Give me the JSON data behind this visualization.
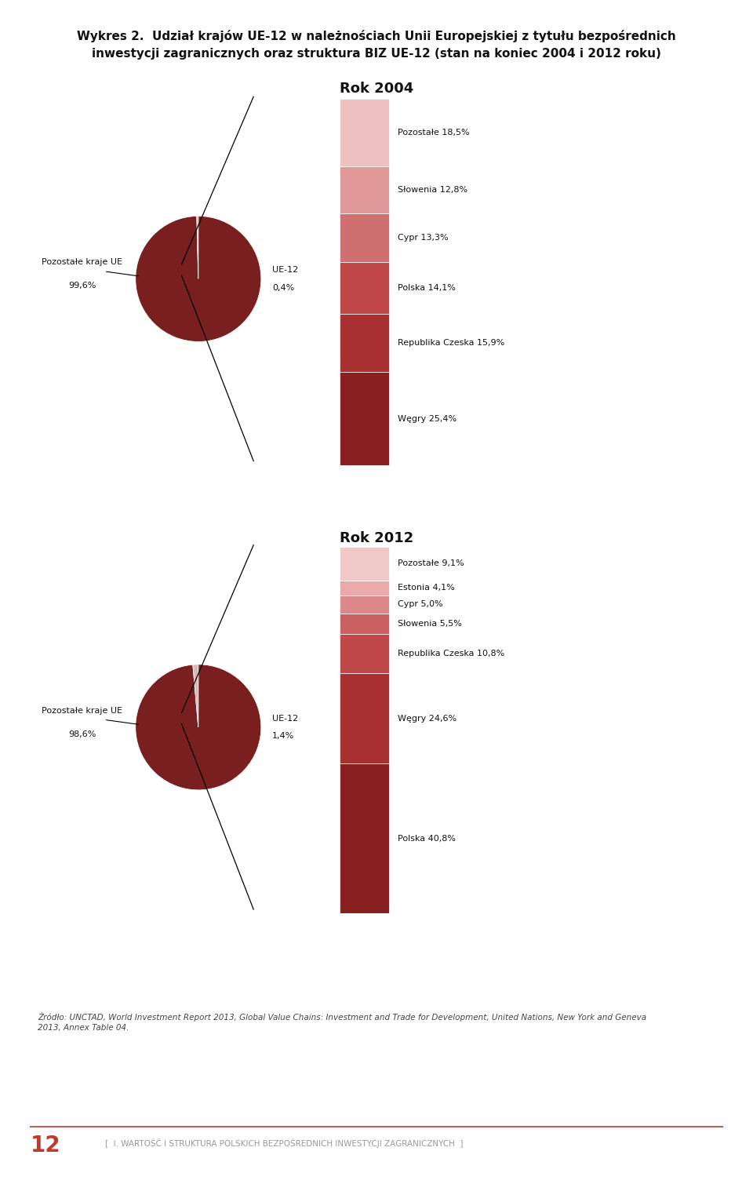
{
  "title_line1": "Wykres 2.  Udział krajów UE-12 w należnościach Unii Europejskiej z tytułu bezpośrednich",
  "title_line2": "inwestycji zagranicznych oraz struktura BIZ UE-12 (stan na koniec 2004 i 2012 roku)",
  "rok2004_title": "Rok 2004",
  "rok2012_title": "Rok 2012",
  "pie2004_values": [
    99.6,
    0.4
  ],
  "pie2004_colors": [
    "#7A1F1F",
    "#D8B8B8"
  ],
  "pie2004_label_big_line1": "Pozostałe kraje UE",
  "pie2004_label_big_line2": "99,6%",
  "pie2004_label_small_line1": "UE-12",
  "pie2004_label_small_line2": "0,4%",
  "bar2004_labels": [
    "Węgry 25,4%",
    "Republika Czeska 15,9%",
    "Polska 14,1%",
    "Cypr 13,3%",
    "Słowenia 12,8%",
    "Pozostałe 18,5%"
  ],
  "bar2004_values": [
    25.4,
    15.9,
    14.1,
    13.3,
    12.8,
    18.5
  ],
  "bar2004_colors": [
    "#8B2020",
    "#A83030",
    "#C04848",
    "#D07070",
    "#E09898",
    "#EFC0C0"
  ],
  "pie2012_values": [
    98.6,
    1.4
  ],
  "pie2012_colors": [
    "#7A1F1F",
    "#D8B8B8"
  ],
  "pie2012_label_big_line1": "Pozostałe kraje UE",
  "pie2012_label_big_line2": "98,6%",
  "pie2012_label_small_line1": "UE-12",
  "pie2012_label_small_line2": "1,4%",
  "bar2012_labels": [
    "Polska 40,8%",
    "Węgry 24,6%",
    "Republika Czeska 10,8%",
    "Słowenia 5,5%",
    "Cypr 5,0%",
    "Estonia 4,1%",
    "Pozostałe 9,1%"
  ],
  "bar2012_values": [
    40.8,
    24.6,
    10.8,
    5.5,
    5.0,
    4.1,
    9.1
  ],
  "bar2012_colors": [
    "#8B2020",
    "#A83030",
    "#C04848",
    "#CC6060",
    "#DD8888",
    "#EAA8A8",
    "#F0C8C8"
  ],
  "source_line1": "Źródło: UNCTAD, World Investment Report 2013, Global Value Chains: Investment and Trade for Development, United Nations, New York and Geneva",
  "source_line2": "2013, Annex Table 04.",
  "footer_number": "12",
  "footer_text": "I. WARTOŚĆ I STRUKTURA POLSKICH BEZPOŚREDNICH INWESTYCJI ZAGRANICZNYCH",
  "bg_color": "#FFFFFF",
  "title_fontsize": 11,
  "section_title_fontsize": 13,
  "label_fontsize": 8,
  "bar_label_fontsize": 8
}
